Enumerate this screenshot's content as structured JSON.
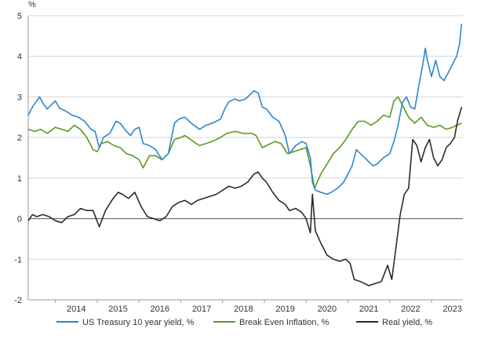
{
  "chart_data": {
    "type": "line",
    "title": "",
    "ylabel": "%",
    "xlabel": "",
    "ylim": [
      -2,
      5
    ],
    "xlim": [
      2013.35,
      2023.75
    ],
    "y_ticks": [
      "-2",
      "-1",
      "0",
      "1",
      "2",
      "3",
      "4",
      "5"
    ],
    "x_ticks": [
      "2014",
      "2015",
      "2016",
      "2017",
      "2018",
      "2019",
      "2020",
      "2021",
      "2022",
      "2023"
    ],
    "grid": true,
    "legend_position": "bottom",
    "series": [
      {
        "name": "US Treasury 10 year yield, %",
        "color": "#2e86cc",
        "points": [
          [
            2013.35,
            2.55
          ],
          [
            2013.45,
            2.75
          ],
          [
            2013.55,
            2.9
          ],
          [
            2013.62,
            3.0
          ],
          [
            2013.7,
            2.85
          ],
          [
            2013.8,
            2.7
          ],
          [
            2013.9,
            2.8
          ],
          [
            2014.0,
            2.9
          ],
          [
            2014.1,
            2.72
          ],
          [
            2014.25,
            2.65
          ],
          [
            2014.4,
            2.55
          ],
          [
            2014.55,
            2.5
          ],
          [
            2014.7,
            2.4
          ],
          [
            2014.85,
            2.2
          ],
          [
            2014.95,
            2.15
          ],
          [
            2015.05,
            1.75
          ],
          [
            2015.15,
            2.0
          ],
          [
            2015.3,
            2.1
          ],
          [
            2015.45,
            2.4
          ],
          [
            2015.55,
            2.35
          ],
          [
            2015.7,
            2.15
          ],
          [
            2015.8,
            2.05
          ],
          [
            2015.9,
            2.2
          ],
          [
            2016.0,
            2.25
          ],
          [
            2016.1,
            1.85
          ],
          [
            2016.25,
            1.8
          ],
          [
            2016.4,
            1.7
          ],
          [
            2016.55,
            1.45
          ],
          [
            2016.7,
            1.6
          ],
          [
            2016.85,
            2.35
          ],
          [
            2016.95,
            2.45
          ],
          [
            2017.1,
            2.5
          ],
          [
            2017.25,
            2.35
          ],
          [
            2017.45,
            2.2
          ],
          [
            2017.6,
            2.3
          ],
          [
            2017.75,
            2.35
          ],
          [
            2017.95,
            2.45
          ],
          [
            2018.05,
            2.7
          ],
          [
            2018.15,
            2.88
          ],
          [
            2018.3,
            2.95
          ],
          [
            2018.4,
            2.9
          ],
          [
            2018.55,
            2.95
          ],
          [
            2018.75,
            3.15
          ],
          [
            2018.85,
            3.1
          ],
          [
            2018.95,
            2.75
          ],
          [
            2019.05,
            2.7
          ],
          [
            2019.2,
            2.5
          ],
          [
            2019.35,
            2.4
          ],
          [
            2019.5,
            2.05
          ],
          [
            2019.6,
            1.6
          ],
          [
            2019.75,
            1.8
          ],
          [
            2019.9,
            1.9
          ],
          [
            2020.0,
            1.85
          ],
          [
            2020.1,
            1.5
          ],
          [
            2020.15,
            0.9
          ],
          [
            2020.22,
            0.7
          ],
          [
            2020.35,
            0.65
          ],
          [
            2020.5,
            0.6
          ],
          [
            2020.6,
            0.65
          ],
          [
            2020.75,
            0.75
          ],
          [
            2020.9,
            0.9
          ],
          [
            2021.0,
            1.1
          ],
          [
            2021.1,
            1.3
          ],
          [
            2021.2,
            1.7
          ],
          [
            2021.3,
            1.6
          ],
          [
            2021.45,
            1.45
          ],
          [
            2021.6,
            1.3
          ],
          [
            2021.7,
            1.35
          ],
          [
            2021.85,
            1.5
          ],
          [
            2022.0,
            1.6
          ],
          [
            2022.1,
            1.9
          ],
          [
            2022.2,
            2.3
          ],
          [
            2022.3,
            2.85
          ],
          [
            2022.4,
            3.0
          ],
          [
            2022.5,
            2.75
          ],
          [
            2022.6,
            2.7
          ],
          [
            2022.7,
            3.3
          ],
          [
            2022.8,
            3.85
          ],
          [
            2022.85,
            4.2
          ],
          [
            2022.9,
            3.9
          ],
          [
            2023.0,
            3.5
          ],
          [
            2023.1,
            3.9
          ],
          [
            2023.2,
            3.5
          ],
          [
            2023.3,
            3.4
          ],
          [
            2023.4,
            3.6
          ],
          [
            2023.5,
            3.8
          ],
          [
            2023.6,
            4.0
          ],
          [
            2023.67,
            4.3
          ],
          [
            2023.72,
            4.8
          ]
        ]
      },
      {
        "name": "Break Even Inflation, %",
        "color": "#5a9a1f",
        "points": [
          [
            2013.35,
            2.2
          ],
          [
            2013.5,
            2.15
          ],
          [
            2013.65,
            2.2
          ],
          [
            2013.8,
            2.1
          ],
          [
            2014.0,
            2.25
          ],
          [
            2014.15,
            2.2
          ],
          [
            2014.3,
            2.15
          ],
          [
            2014.45,
            2.3
          ],
          [
            2014.6,
            2.2
          ],
          [
            2014.75,
            2.0
          ],
          [
            2014.9,
            1.7
          ],
          [
            2015.0,
            1.65
          ],
          [
            2015.1,
            1.85
          ],
          [
            2015.25,
            1.9
          ],
          [
            2015.4,
            1.8
          ],
          [
            2015.55,
            1.75
          ],
          [
            2015.7,
            1.6
          ],
          [
            2015.85,
            1.55
          ],
          [
            2016.0,
            1.45
          ],
          [
            2016.1,
            1.25
          ],
          [
            2016.25,
            1.55
          ],
          [
            2016.4,
            1.55
          ],
          [
            2016.55,
            1.45
          ],
          [
            2016.7,
            1.6
          ],
          [
            2016.85,
            1.95
          ],
          [
            2017.0,
            2.0
          ],
          [
            2017.1,
            2.05
          ],
          [
            2017.3,
            1.9
          ],
          [
            2017.45,
            1.8
          ],
          [
            2017.6,
            1.85
          ],
          [
            2017.75,
            1.9
          ],
          [
            2017.95,
            2.0
          ],
          [
            2018.1,
            2.1
          ],
          [
            2018.3,
            2.15
          ],
          [
            2018.5,
            2.1
          ],
          [
            2018.7,
            2.1
          ],
          [
            2018.8,
            2.05
          ],
          [
            2018.95,
            1.75
          ],
          [
            2019.05,
            1.8
          ],
          [
            2019.25,
            1.9
          ],
          [
            2019.4,
            1.85
          ],
          [
            2019.55,
            1.6
          ],
          [
            2019.7,
            1.65
          ],
          [
            2019.85,
            1.7
          ],
          [
            2020.0,
            1.75
          ],
          [
            2020.1,
            1.3
          ],
          [
            2020.2,
            0.75
          ],
          [
            2020.35,
            1.1
          ],
          [
            2020.5,
            1.35
          ],
          [
            2020.65,
            1.6
          ],
          [
            2020.8,
            1.75
          ],
          [
            2020.95,
            1.95
          ],
          [
            2021.1,
            2.2
          ],
          [
            2021.25,
            2.4
          ],
          [
            2021.4,
            2.4
          ],
          [
            2021.55,
            2.3
          ],
          [
            2021.7,
            2.4
          ],
          [
            2021.85,
            2.55
          ],
          [
            2022.0,
            2.5
          ],
          [
            2022.1,
            2.9
          ],
          [
            2022.2,
            3.0
          ],
          [
            2022.3,
            2.8
          ],
          [
            2022.45,
            2.5
          ],
          [
            2022.6,
            2.35
          ],
          [
            2022.75,
            2.5
          ],
          [
            2022.9,
            2.3
          ],
          [
            2023.05,
            2.25
          ],
          [
            2023.2,
            2.3
          ],
          [
            2023.35,
            2.2
          ],
          [
            2023.5,
            2.25
          ],
          [
            2023.6,
            2.3
          ],
          [
            2023.72,
            2.35
          ]
        ]
      },
      {
        "name": "Real yield, %",
        "color": "#2b2b2b",
        "points": [
          [
            2013.35,
            -0.05
          ],
          [
            2013.45,
            0.1
          ],
          [
            2013.55,
            0.05
          ],
          [
            2013.7,
            0.1
          ],
          [
            2013.85,
            0.05
          ],
          [
            2014.0,
            -0.05
          ],
          [
            2014.15,
            -0.1
          ],
          [
            2014.3,
            0.05
          ],
          [
            2014.45,
            0.1
          ],
          [
            2014.6,
            0.25
          ],
          [
            2014.75,
            0.2
          ],
          [
            2014.9,
            0.2
          ],
          [
            2015.05,
            -0.2
          ],
          [
            2015.2,
            0.2
          ],
          [
            2015.35,
            0.45
          ],
          [
            2015.5,
            0.65
          ],
          [
            2015.6,
            0.6
          ],
          [
            2015.75,
            0.5
          ],
          [
            2015.9,
            0.65
          ],
          [
            2016.05,
            0.3
          ],
          [
            2016.2,
            0.05
          ],
          [
            2016.35,
            0.0
          ],
          [
            2016.5,
            -0.05
          ],
          [
            2016.65,
            0.05
          ],
          [
            2016.8,
            0.3
          ],
          [
            2016.95,
            0.4
          ],
          [
            2017.1,
            0.45
          ],
          [
            2017.25,
            0.35
          ],
          [
            2017.4,
            0.45
          ],
          [
            2017.55,
            0.5
          ],
          [
            2017.7,
            0.55
          ],
          [
            2017.85,
            0.6
          ],
          [
            2018.0,
            0.7
          ],
          [
            2018.15,
            0.8
          ],
          [
            2018.3,
            0.75
          ],
          [
            2018.45,
            0.8
          ],
          [
            2018.6,
            0.9
          ],
          [
            2018.75,
            1.1
          ],
          [
            2018.85,
            1.15
          ],
          [
            2018.95,
            1.0
          ],
          [
            2019.05,
            0.9
          ],
          [
            2019.2,
            0.65
          ],
          [
            2019.35,
            0.45
          ],
          [
            2019.5,
            0.35
          ],
          [
            2019.6,
            0.2
          ],
          [
            2019.75,
            0.25
          ],
          [
            2019.9,
            0.15
          ],
          [
            2020.0,
            0.0
          ],
          [
            2020.1,
            -0.35
          ],
          [
            2020.15,
            0.6
          ],
          [
            2020.22,
            -0.3
          ],
          [
            2020.35,
            -0.6
          ],
          [
            2020.5,
            -0.9
          ],
          [
            2020.65,
            -1.0
          ],
          [
            2020.8,
            -1.05
          ],
          [
            2020.95,
            -1.0
          ],
          [
            2021.05,
            -1.1
          ],
          [
            2021.15,
            -1.5
          ],
          [
            2021.3,
            -1.55
          ],
          [
            2021.5,
            -1.65
          ],
          [
            2021.65,
            -1.6
          ],
          [
            2021.8,
            -1.55
          ],
          [
            2021.95,
            -1.15
          ],
          [
            2022.05,
            -1.5
          ],
          [
            2022.15,
            -0.7
          ],
          [
            2022.25,
            0.1
          ],
          [
            2022.35,
            0.6
          ],
          [
            2022.45,
            0.75
          ],
          [
            2022.55,
            1.95
          ],
          [
            2022.65,
            1.8
          ],
          [
            2022.75,
            1.4
          ],
          [
            2022.85,
            1.75
          ],
          [
            2022.95,
            1.95
          ],
          [
            2023.05,
            1.5
          ],
          [
            2023.15,
            1.3
          ],
          [
            2023.25,
            1.45
          ],
          [
            2023.35,
            1.75
          ],
          [
            2023.45,
            1.85
          ],
          [
            2023.55,
            2.0
          ],
          [
            2023.62,
            2.4
          ],
          [
            2023.72,
            2.75
          ]
        ]
      }
    ]
  }
}
